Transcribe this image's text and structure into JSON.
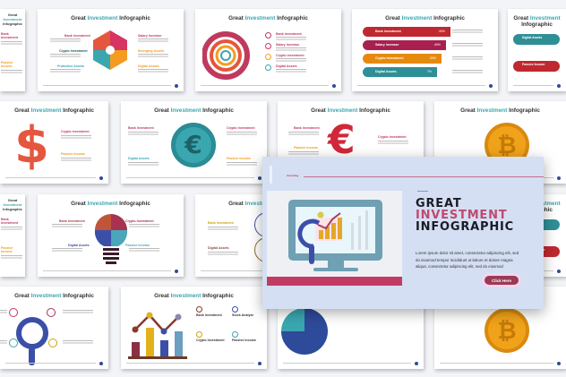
{
  "slide_title": {
    "pre": "Great ",
    "highlight": "Investment",
    "post": " Infographic"
  },
  "labels": {
    "bank": "Bank Investment",
    "salary": "Salary Increase",
    "crypto": "Crypto Investment",
    "digital": "Digital Assets",
    "passive": "Passive Income",
    "stock": "Stock Analyze",
    "emerging": "Emerging Assets",
    "protective": "Protective Assets"
  },
  "percent": [
    "40%",
    "40%",
    "30%",
    "7%"
  ],
  "featured": {
    "tag": "Investing",
    "title_line1": "GREAT",
    "title_line2": "INVESTMENT",
    "title_line3": "INFOGRAPHIC",
    "body": "Lorem ipsum dolor sit amet, consectetur adipiscing elit, sed do eiusmod tempor incididunt ut labore et dolore magna aliqua. consectetur adipiscing elit, sed do eiusmod",
    "button": "Click Here"
  },
  "colors": {
    "accent": "#c0395e",
    "teal": "#3aa7b0",
    "orange": "#f39c1f",
    "navy": "#2e4a9a",
    "featured_bg": "#d4dff3"
  }
}
